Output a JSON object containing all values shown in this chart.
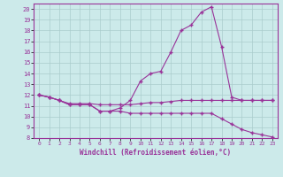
{
  "xlabel": "Windchill (Refroidissement éolien,°C)",
  "background_color": "#cceaea",
  "grid_color": "#aacccc",
  "line_color": "#993399",
  "x_values": [
    0,
    1,
    2,
    3,
    4,
    5,
    6,
    7,
    8,
    9,
    10,
    11,
    12,
    13,
    14,
    15,
    16,
    17,
    18,
    19,
    20,
    21,
    22,
    23
  ],
  "line1_y": [
    12.0,
    11.8,
    11.5,
    11.1,
    11.1,
    11.1,
    10.5,
    10.5,
    10.8,
    11.5,
    13.3,
    14.0,
    14.2,
    16.0,
    18.0,
    18.5,
    19.7,
    20.2,
    16.5,
    11.8,
    11.5,
    11.5,
    11.5,
    11.5
  ],
  "line2_y": [
    12.0,
    11.8,
    11.5,
    11.2,
    11.2,
    11.2,
    11.1,
    11.1,
    11.1,
    11.1,
    11.2,
    11.3,
    11.3,
    11.4,
    11.5,
    11.5,
    11.5,
    11.5,
    11.5,
    11.5,
    11.5,
    11.5,
    11.5,
    11.5
  ],
  "line3_y": [
    12.0,
    11.8,
    11.5,
    11.1,
    11.1,
    11.1,
    10.5,
    10.5,
    10.5,
    10.3,
    10.3,
    10.3,
    10.3,
    10.3,
    10.3,
    10.3,
    10.3,
    10.3,
    9.8,
    9.3,
    8.8,
    8.5,
    8.3,
    8.1
  ],
  "ylim": [
    8,
    20.5
  ],
  "xlim": [
    -0.5,
    23.5
  ],
  "yticks": [
    8,
    9,
    10,
    11,
    12,
    13,
    14,
    15,
    16,
    17,
    18,
    19,
    20
  ],
  "xticks": [
    0,
    1,
    2,
    3,
    4,
    5,
    6,
    7,
    8,
    9,
    10,
    11,
    12,
    13,
    14,
    15,
    16,
    17,
    18,
    19,
    20,
    21,
    22,
    23
  ]
}
